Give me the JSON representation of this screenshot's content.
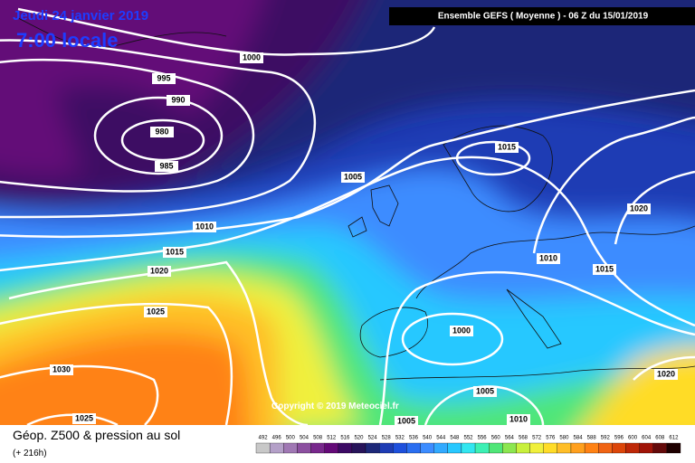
{
  "header": {
    "date": "Jeudi 24 janvier 2019",
    "time": "7:00 locale",
    "run": "Ensemble GEFS  ( Moyenne )  -  06 Z du 15/01/2019"
  },
  "isobar_labels": [
    "1000",
    "995",
    "990",
    "980",
    "985",
    "1005",
    "1010",
    "1015",
    "1020",
    "1025",
    "1030",
    "1025",
    "1015",
    "1020",
    "1010",
    "1015",
    "1000",
    "1005",
    "1005",
    "1010",
    "1020"
  ],
  "copyright": "Copyright © 2019 Meteociel.fr",
  "footer": {
    "title": "Géop. Z500 & pression au sol",
    "lead": "(+ 216h)"
  },
  "scale": {
    "values": [
      492,
      496,
      500,
      504,
      508,
      512,
      516,
      520,
      524,
      528,
      532,
      536,
      540,
      544,
      548,
      552,
      556,
      560,
      564,
      568,
      572,
      576,
      580,
      584,
      588,
      592,
      596,
      600,
      604,
      608,
      612
    ],
    "colors": [
      "#c8c8c8",
      "#b4a0c8",
      "#a078b4",
      "#8c50a0",
      "#78288c",
      "#640a78",
      "#3c0a64",
      "#28145a",
      "#1e2878",
      "#1e3cb4",
      "#1e50dc",
      "#2a6ef0",
      "#3c8cff",
      "#32aaff",
      "#28c8ff",
      "#32e6f0",
      "#3cf0b4",
      "#50e678",
      "#8ce650",
      "#c8f03c",
      "#f0f03c",
      "#ffdc28",
      "#ffbe28",
      "#ffa01e",
      "#ff8214",
      "#f06414",
      "#dc460a",
      "#be2808",
      "#a01408",
      "#640a0a",
      "#1e0000"
    ]
  }
}
